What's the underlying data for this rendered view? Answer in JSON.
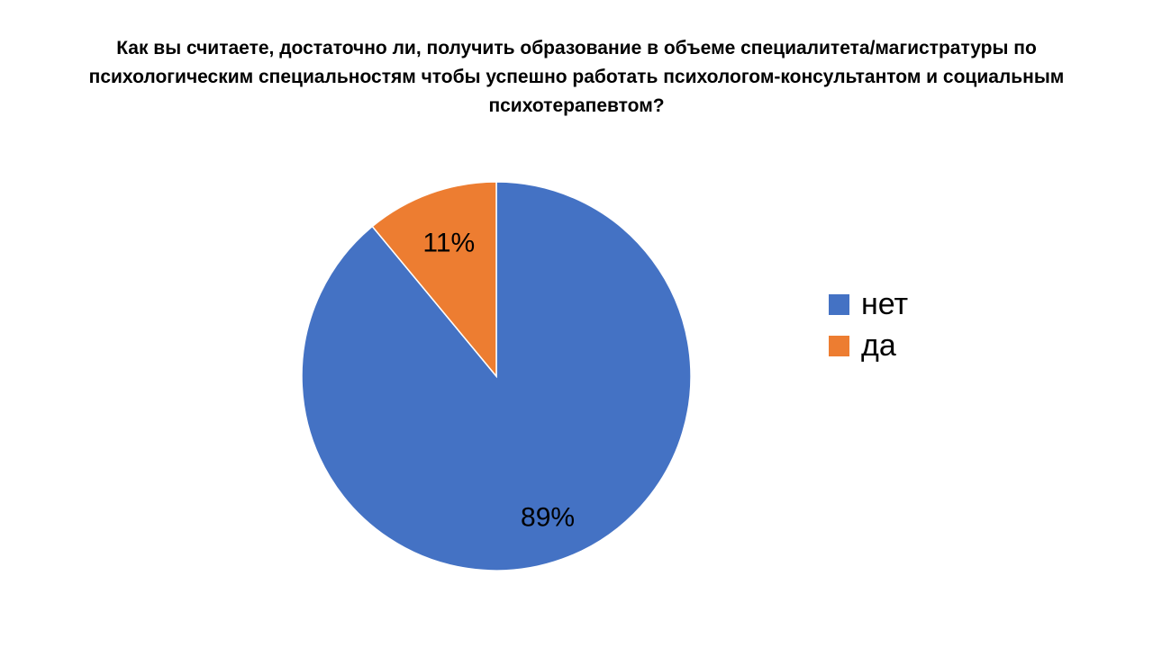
{
  "chart_data": {
    "type": "pie",
    "title": "Как вы считаете, достаточно ли, получить образование в объеме специалитета/магистратуры по психологическим специальностям чтобы успешно работать психологом-консультантом и социальным психотерапевтом?",
    "categories": [
      "нет",
      "да"
    ],
    "values": [
      89,
      11
    ],
    "data_labels": [
      "89%",
      "11%"
    ],
    "colors": [
      "#4472C4",
      "#ED7D31"
    ],
    "legend": [
      "нет",
      "да"
    ],
    "legend_position": "right"
  }
}
